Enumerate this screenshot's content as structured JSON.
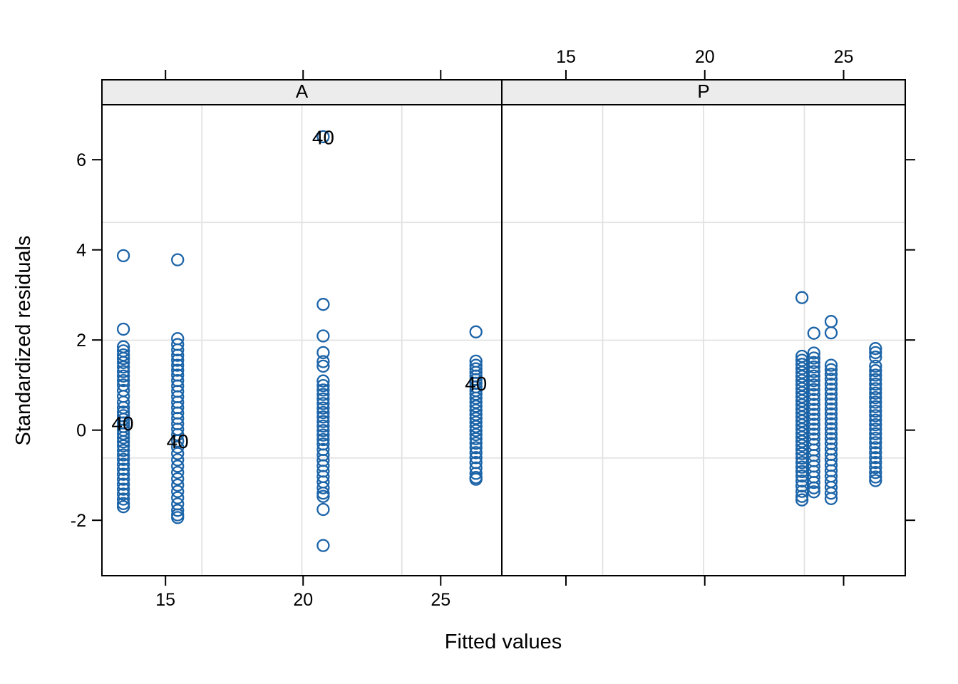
{
  "chart_data": {
    "type": "scatter",
    "title": "",
    "xlabel": "Fitted values",
    "ylabel": "Standardized residuals",
    "x_ticks": [
      {
        "value": 15,
        "label": "15"
      },
      {
        "value": 20,
        "label": "20"
      },
      {
        "value": 25,
        "label": "25"
      }
    ],
    "y_ticks": [
      {
        "value": -2,
        "label": "-2"
      },
      {
        "value": 0,
        "label": "0"
      },
      {
        "value": 2,
        "label": "2"
      },
      {
        "value": 4,
        "label": "4"
      },
      {
        "value": 6,
        "label": "6"
      }
    ],
    "xlim": [
      12.69,
      27.22
    ],
    "ylim": [
      -3.23,
      7.22
    ],
    "legend": "none",
    "grid": "on",
    "point_color": "#1c64a8",
    "strip_fill": "#ececec",
    "grid_color": "#e2e2e2",
    "panels": [
      {
        "label": "A",
        "axis_labels": "bottom",
        "columns": [
          {
            "x": 13.47,
            "ys": [
              3.87,
              2.24,
              1.85,
              1.76,
              1.67,
              1.59,
              1.5,
              1.4,
              1.3,
              1.2,
              1.1,
              1.0,
              0.88,
              0.75,
              0.62,
              0.5,
              0.4,
              0.32,
              0.24,
              0.16,
              0.08,
              0.0,
              -0.08,
              -0.17,
              -0.26,
              -0.35,
              -0.45,
              -0.55,
              -0.65,
              -0.76,
              -0.87,
              -0.98,
              -1.09,
              -1.2,
              -1.31,
              -1.42,
              -1.53,
              -1.63,
              -1.7
            ]
          },
          {
            "x": 15.44,
            "ys": [
              3.78,
              2.03,
              1.9,
              1.78,
              1.66,
              1.55,
              1.44,
              1.33,
              1.22,
              1.1,
              0.98,
              0.86,
              0.74,
              0.62,
              0.5,
              0.38,
              0.26,
              0.14,
              0.02,
              -0.1,
              -0.24,
              -0.38,
              -0.52,
              -0.66,
              -0.8,
              -0.94,
              -1.08,
              -1.22,
              -1.36,
              -1.5,
              -1.64,
              -1.78,
              -1.88,
              -1.94
            ]
          },
          {
            "x": 20.73,
            "ys": [
              6.51,
              2.79,
              2.09,
              1.72,
              1.52,
              1.42,
              1.09,
              0.99,
              0.89,
              0.79,
              0.69,
              0.59,
              0.49,
              0.39,
              0.29,
              0.19,
              0.09,
              -0.01,
              -0.11,
              -0.21,
              -0.31,
              -0.43,
              -0.55,
              -0.67,
              -0.79,
              -0.91,
              -1.03,
              -1.15,
              -1.28,
              -1.4,
              -1.47,
              -1.76,
              -2.56
            ]
          },
          {
            "x": 26.28,
            "ys": [
              2.18,
              1.53,
              1.44,
              1.36,
              1.28,
              1.2,
              1.12,
              1.04,
              0.96,
              0.88,
              0.8,
              0.71,
              0.62,
              0.53,
              0.44,
              0.35,
              0.26,
              0.17,
              0.08,
              -0.01,
              -0.1,
              -0.19,
              -0.29,
              -0.39,
              -0.5,
              -0.61,
              -0.72,
              -0.84,
              -0.96,
              -1.05,
              -1.09
            ]
          }
        ],
        "point_labels": [
          {
            "x": 13.44,
            "y": 0.15,
            "text": "40"
          },
          {
            "x": 15.44,
            "y": -0.24,
            "text": "40"
          },
          {
            "x": 20.73,
            "y": 6.5,
            "text": "40"
          },
          {
            "x": 26.28,
            "y": 1.04,
            "text": "40"
          }
        ]
      },
      {
        "label": "P",
        "axis_labels": "top",
        "columns": [
          {
            "x": 23.5,
            "ys": [
              2.94,
              1.64,
              1.55,
              1.46,
              1.37,
              1.28,
              1.19,
              1.1,
              1.01,
              0.92,
              0.83,
              0.74,
              0.65,
              0.56,
              0.47,
              0.38,
              0.29,
              0.2,
              0.11,
              0.02,
              -0.07,
              -0.16,
              -0.25,
              -0.34,
              -0.43,
              -0.52,
              -0.62,
              -0.72,
              -0.82,
              -0.92,
              -1.02,
              -1.13,
              -1.24,
              -1.36,
              -1.47,
              -1.55
            ]
          },
          {
            "x": 23.93,
            "ys": [
              2.15,
              1.71,
              1.6,
              1.5,
              1.4,
              1.3,
              1.2,
              1.1,
              1.0,
              0.9,
              0.79,
              0.68,
              0.57,
              0.46,
              0.35,
              0.24,
              0.13,
              0.02,
              -0.09,
              -0.2,
              -0.32,
              -0.44,
              -0.56,
              -0.68,
              -0.8,
              -0.92,
              -1.04,
              -1.16,
              -1.28,
              -1.37
            ]
          },
          {
            "x": 24.55,
            "ys": [
              2.41,
              2.16,
              1.44,
              1.34,
              1.24,
              1.13,
              1.02,
              0.91,
              0.8,
              0.69,
              0.58,
              0.47,
              0.36,
              0.25,
              0.14,
              0.03,
              -0.08,
              -0.19,
              -0.3,
              -0.42,
              -0.54,
              -0.66,
              -0.78,
              -0.9,
              -1.02,
              -1.14,
              -1.27,
              -1.4,
              -1.52
            ]
          },
          {
            "x": 26.15,
            "ys": [
              1.81,
              1.72,
              1.62,
              1.42,
              1.32,
              1.22,
              1.12,
              1.02,
              0.92,
              0.82,
              0.72,
              0.62,
              0.52,
              0.42,
              0.32,
              0.22,
              0.12,
              0.02,
              -0.08,
              -0.18,
              -0.28,
              -0.39,
              -0.5,
              -0.61,
              -0.72,
              -0.83,
              -0.94,
              -1.04,
              -1.12
            ]
          }
        ],
        "point_labels": []
      }
    ]
  }
}
